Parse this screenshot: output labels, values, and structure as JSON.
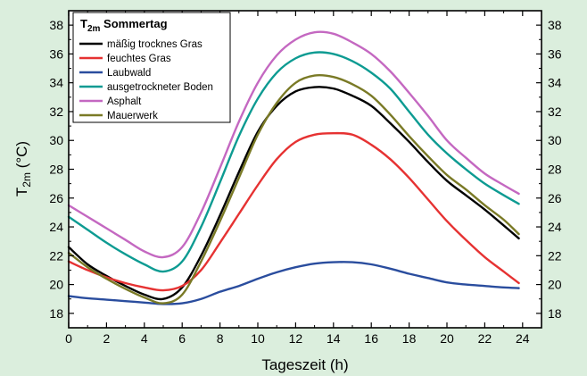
{
  "chart_data": {
    "type": "line",
    "xlabel": "Tageszeit (h)",
    "ylabel": {
      "main": "T",
      "sub": "2m",
      "unit": " (°C)"
    },
    "xlim": [
      0,
      25
    ],
    "ylim": [
      17,
      39
    ],
    "x_ticks": [
      0,
      2,
      4,
      6,
      8,
      10,
      12,
      14,
      16,
      18,
      20,
      22,
      24
    ],
    "y_ticks": [
      18,
      20,
      22,
      24,
      26,
      28,
      30,
      32,
      34,
      36,
      38
    ],
    "grid": false,
    "legend": {
      "placement": "top-left",
      "title_main": "T",
      "title_sub": "2m",
      "title_rest": " Sommertag"
    },
    "x": [
      0,
      1,
      2,
      3,
      4,
      5,
      6,
      7,
      8,
      9,
      10,
      11,
      12,
      13,
      14,
      15,
      16,
      17,
      18,
      19,
      20,
      21,
      22,
      23,
      23.8
    ],
    "series": [
      {
        "name": "mäßig trocknes Gras",
        "color": "#000000",
        "values": [
          22.6,
          21.4,
          20.6,
          19.9,
          19.3,
          19.0,
          19.8,
          22.0,
          24.8,
          27.8,
          30.6,
          32.4,
          33.4,
          33.7,
          33.6,
          33.1,
          32.4,
          31.2,
          29.9,
          28.5,
          27.2,
          26.2,
          25.2,
          24.1,
          23.2
        ]
      },
      {
        "name": "feuchtes Gras",
        "color": "#e63232",
        "values": [
          21.6,
          21.0,
          20.5,
          20.1,
          19.8,
          19.6,
          19.9,
          21.0,
          22.9,
          24.9,
          26.9,
          28.7,
          29.9,
          30.4,
          30.5,
          30.4,
          29.7,
          28.7,
          27.4,
          25.9,
          24.4,
          23.1,
          21.9,
          20.9,
          20.1
        ]
      },
      {
        "name": "Laubwald",
        "color": "#2a4d9e",
        "values": [
          19.2,
          19.05,
          18.95,
          18.85,
          18.75,
          18.65,
          18.7,
          19.0,
          19.5,
          19.9,
          20.4,
          20.85,
          21.2,
          21.45,
          21.55,
          21.55,
          21.4,
          21.1,
          20.75,
          20.45,
          20.15,
          20.0,
          19.9,
          19.8,
          19.75
        ]
      },
      {
        "name": "ausgetrockneter Boden",
        "color": "#0d9b92",
        "values": [
          24.7,
          23.8,
          22.9,
          22.1,
          21.4,
          20.9,
          21.6,
          24.0,
          27.1,
          30.3,
          32.9,
          34.7,
          35.7,
          36.1,
          36.0,
          35.5,
          34.7,
          33.6,
          32.0,
          30.4,
          29.1,
          28.0,
          27.0,
          26.2,
          25.6
        ]
      },
      {
        "name": "Asphalt",
        "color": "#c468c1",
        "values": [
          25.5,
          24.7,
          23.9,
          23.1,
          22.3,
          21.9,
          22.6,
          25.0,
          28.1,
          31.3,
          34.0,
          35.9,
          37.0,
          37.5,
          37.4,
          36.8,
          36.0,
          34.8,
          33.3,
          31.7,
          30.0,
          28.8,
          27.7,
          26.9,
          26.3
        ]
      },
      {
        "name": "Mauerwerk",
        "color": "#7a7a26",
        "values": [
          22.2,
          21.2,
          20.4,
          19.7,
          19.1,
          18.7,
          19.3,
          21.6,
          24.4,
          27.4,
          30.4,
          32.6,
          34.0,
          34.5,
          34.4,
          33.9,
          33.1,
          31.8,
          30.3,
          28.9,
          27.6,
          26.6,
          25.5,
          24.5,
          23.5
        ]
      }
    ]
  }
}
